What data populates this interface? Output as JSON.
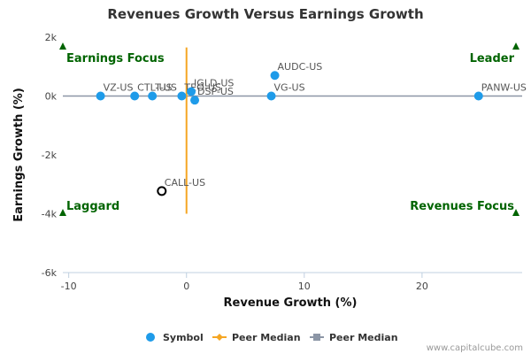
{
  "colors": {
    "point": "#1e9be9",
    "highlight_point": "#000000",
    "peer_median_x": "#f5a623",
    "peer_median_y": "#8c96a6",
    "quadrant_text": "#006400",
    "grid": "#e0e0e0"
  },
  "chart_data": {
    "type": "scatter",
    "title": "Revenues Growth Versus Earnings Growth",
    "xlabel": "Revenue Growth (%)",
    "ylabel": "Earnings Growth (%)",
    "xlim": [
      -10.5,
      28.5
    ],
    "ylim": [
      -6000,
      2000
    ],
    "xticks": [
      -10,
      0,
      10,
      20
    ],
    "xtick_labels": [
      "-10",
      "0",
      "10",
      "20"
    ],
    "yticks": [
      2000,
      0,
      -2000,
      -4000,
      -6000
    ],
    "ytick_labels": [
      "2k",
      "0k",
      "-2k",
      "-4k",
      "-6k"
    ],
    "peer_median_x": 0.0,
    "peer_median_x_range": [
      -4000,
      1650
    ],
    "peer_median_y": 0,
    "points": [
      {
        "label": "VZ-US",
        "x": -7.3,
        "y": 0
      },
      {
        "label": "CTL-US",
        "x": -4.4,
        "y": 0
      },
      {
        "label": "T-US",
        "x": -2.9,
        "y": 0
      },
      {
        "label": "TEO-US",
        "x": -0.4,
        "y": 0
      },
      {
        "label": "IGLD-US",
        "x": 0.4,
        "y": 150
      },
      {
        "label": "DSP-US",
        "x": 0.7,
        "y": -140
      },
      {
        "label": "AUDC-US",
        "x": 7.5,
        "y": 700
      },
      {
        "label": "VG-US",
        "x": 7.2,
        "y": 0
      },
      {
        "label": "PANW-US",
        "x": 24.8,
        "y": 0
      },
      {
        "label": "CALL-US",
        "x": -2.1,
        "y": -3230,
        "highlight": true
      }
    ],
    "quadrants": {
      "top_left": "Earnings Focus",
      "top_right": "Leader",
      "bottom_left": "Laggard",
      "bottom_right": "Revenues Focus"
    },
    "legend": [
      {
        "name": "Symbol",
        "marker": "circle"
      },
      {
        "name": "Peer Median",
        "marker": "diamond-line"
      },
      {
        "name": "Peer Median",
        "marker": "square-line"
      }
    ],
    "legend_position": "bottom-center",
    "grid": false
  },
  "credit": "www.capitalcube.com"
}
